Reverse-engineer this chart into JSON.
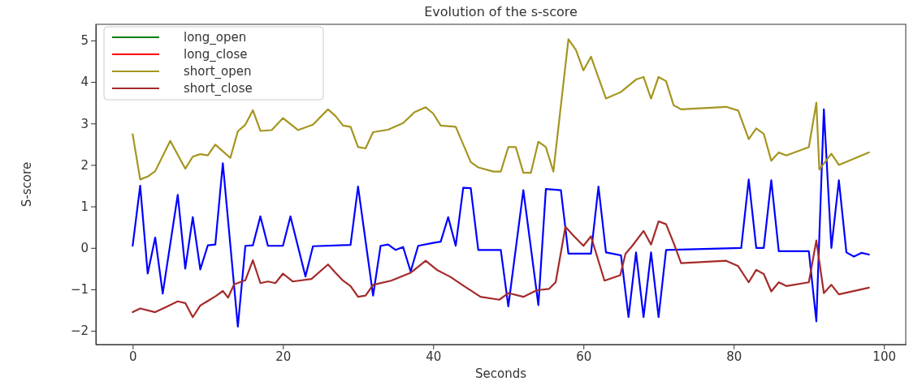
{
  "chart_data": {
    "type": "line",
    "title": "Evolution of the s-score",
    "xlabel": "Seconds",
    "ylabel": "S-score",
    "xlim": [
      -4.9,
      102.9
    ],
    "ylim": [
      -2.33,
      5.39
    ],
    "xticks": [
      0,
      20,
      40,
      60,
      80,
      100
    ],
    "yticks": [
      {
        "value": -2,
        "label": "−2"
      },
      {
        "value": -1,
        "label": "−1"
      },
      0,
      1,
      2,
      3,
      4,
      5
    ],
    "grid": false,
    "legend": "top left",
    "line_style": "solid",
    "marker": "none",
    "series": [
      {
        "color": "#0000ff",
        "x": [
          0,
          1,
          2,
          3,
          4,
          6,
          7,
          8,
          9,
          10,
          11,
          12,
          14,
          15,
          16,
          17,
          18,
          20,
          21,
          23,
          24,
          29,
          30,
          32,
          33,
          34,
          35,
          36,
          37,
          38,
          40,
          41,
          42,
          43,
          44,
          45,
          46,
          49,
          50,
          52,
          54,
          55,
          57,
          58,
          61,
          62,
          63,
          65,
          66,
          67,
          68,
          69,
          70,
          71,
          81,
          82,
          83,
          84,
          85,
          86,
          90,
          91,
          92,
          93,
          94,
          95,
          96,
          97,
          98
        ],
        "values": [
          0.05,
          1.5,
          -0.62,
          0.25,
          -1.1,
          1.28,
          -0.5,
          0.74,
          -0.52,
          0.06,
          0.08,
          2.04,
          -1.9,
          0.05,
          0.06,
          0.76,
          0.05,
          0.05,
          0.76,
          -0.69,
          0.04,
          0.07,
          1.48,
          -1.15,
          0.05,
          0.08,
          -0.05,
          0.02,
          -0.57,
          0.05,
          0.12,
          0.15,
          0.74,
          0.05,
          1.45,
          1.44,
          -0.05,
          -0.05,
          -1.41,
          1.39,
          -1.38,
          1.42,
          1.39,
          -0.14,
          -0.14,
          1.48,
          -0.11,
          -0.18,
          -1.67,
          -0.11,
          -1.67,
          -0.11,
          -1.67,
          -0.05,
          0,
          1.65,
          0,
          0,
          1.63,
          -0.08,
          -0.08,
          -1.77,
          3.34,
          0,
          1.63,
          -0.11,
          -0.21,
          -0.12,
          -0.16
        ]
      },
      {
        "name": "long_open",
        "color": "#008000"
      },
      {
        "name": "long_close",
        "color": "#ff0000"
      },
      {
        "name": "short_open",
        "color": "#a59520",
        "x": [
          0,
          1,
          2,
          3,
          5,
          7,
          8,
          9,
          10,
          11,
          12,
          13,
          14,
          15,
          16,
          17,
          18.5,
          20,
          22,
          24,
          26,
          27,
          28,
          29,
          30,
          31,
          32,
          34,
          36,
          37.5,
          39,
          40,
          41,
          43,
          45,
          46,
          48,
          49,
          50,
          51,
          52,
          53,
          54,
          55,
          56,
          58,
          59,
          60,
          61,
          63,
          65,
          67,
          68,
          69,
          70,
          71,
          72,
          73,
          79,
          80.6,
          82,
          83,
          84,
          85,
          86,
          87,
          90,
          91,
          91.4,
          93,
          94,
          98
        ],
        "values": [
          2.74,
          1.65,
          1.72,
          1.85,
          2.58,
          1.91,
          2.2,
          2.26,
          2.23,
          2.49,
          2.33,
          2.17,
          2.81,
          2.97,
          3.32,
          2.82,
          2.84,
          3.13,
          2.84,
          2.97,
          3.34,
          3.18,
          2.95,
          2.92,
          2.43,
          2.4,
          2.79,
          2.85,
          3.01,
          3.27,
          3.39,
          3.24,
          2.95,
          2.92,
          2.07,
          1.94,
          1.84,
          1.84,
          2.43,
          2.43,
          1.81,
          1.81,
          2.56,
          2.43,
          1.84,
          5.03,
          4.77,
          4.28,
          4.61,
          3.6,
          3.76,
          4.06,
          4.12,
          3.6,
          4.12,
          4.02,
          3.44,
          3.34,
          3.4,
          3.31,
          2.62,
          2.88,
          2.75,
          2.1,
          2.3,
          2.23,
          2.43,
          3.5,
          1.89,
          2.27,
          2.0,
          2.3
        ]
      },
      {
        "name": "short_close",
        "color": "#a52a2a",
        "x": [
          0,
          1,
          3,
          4.5,
          6,
          7,
          8,
          9,
          11,
          12,
          12.7,
          13.5,
          15,
          16,
          17,
          18,
          19,
          20,
          21.3,
          23.8,
          26,
          27,
          28,
          29,
          30,
          31,
          32,
          34.4,
          37,
          39,
          40.5,
          42.3,
          44.1,
          46.3,
          48.8,
          50,
          52,
          53.8,
          55.4,
          56.3,
          57.6,
          58.6,
          60,
          61,
          62.8,
          64.9,
          65.6,
          66.5,
          68,
          69,
          70,
          71,
          72,
          73,
          79,
          80.6,
          82,
          83,
          84,
          85,
          86,
          87,
          90,
          91,
          92,
          93,
          94,
          98
        ],
        "values": [
          -1.55,
          -1.46,
          -1.55,
          -1.42,
          -1.29,
          -1.33,
          -1.67,
          -1.39,
          -1.17,
          -1.04,
          -1.2,
          -0.88,
          -0.78,
          -0.3,
          -0.85,
          -0.81,
          -0.85,
          -0.62,
          -0.81,
          -0.75,
          -0.4,
          -0.6,
          -0.79,
          -0.92,
          -1.18,
          -1.15,
          -0.89,
          -0.79,
          -0.6,
          -0.31,
          -0.53,
          -0.7,
          -0.92,
          -1.18,
          -1.25,
          -1.09,
          -1.18,
          -1.02,
          -0.99,
          -0.83,
          0.51,
          0.31,
          0.05,
          0.28,
          -0.79,
          -0.66,
          -0.14,
          0.05,
          0.41,
          0.08,
          0.64,
          0.57,
          0.12,
          -0.37,
          -0.31,
          -0.44,
          -0.83,
          -0.53,
          -0.63,
          -1.05,
          -0.83,
          -0.92,
          -0.83,
          0.18,
          -1.09,
          -0.89,
          -1.12,
          -0.96
        ]
      }
    ]
  }
}
